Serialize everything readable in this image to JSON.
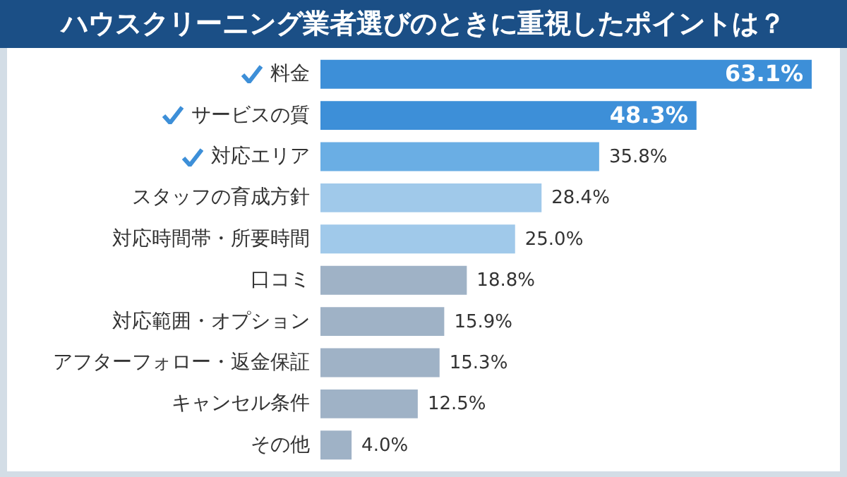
{
  "chart_data": {
    "type": "bar",
    "orientation": "horizontal",
    "title": "ハウスクリーニング業者選びのときに重視したポイントは？",
    "categories": [
      "料金",
      "サービスの質",
      "対応エリア",
      "スタッフの育成方針",
      "対応時間帯・所要時間",
      "口コミ",
      "対応範囲・オプション",
      "アフターフォロー・返金保証",
      "キャンセル条件",
      "その他"
    ],
    "values": [
      63.1,
      48.3,
      35.8,
      28.4,
      25.0,
      18.8,
      15.9,
      15.3,
      12.5,
      4.0
    ],
    "value_labels": [
      "63.1%",
      "48.3%",
      "35.8%",
      "28.4%",
      "25.0%",
      "18.8%",
      "15.9%",
      "15.3%",
      "12.5%",
      "4.0%"
    ],
    "colors": [
      "#3d8fd8",
      "#3d8fd8",
      "#6aaee4",
      "#a0c9ea",
      "#a0c9ea",
      "#9fb2c6",
      "#9fb2c6",
      "#9fb2c6",
      "#9fb2c6",
      "#9fb2c6"
    ]
  }
}
